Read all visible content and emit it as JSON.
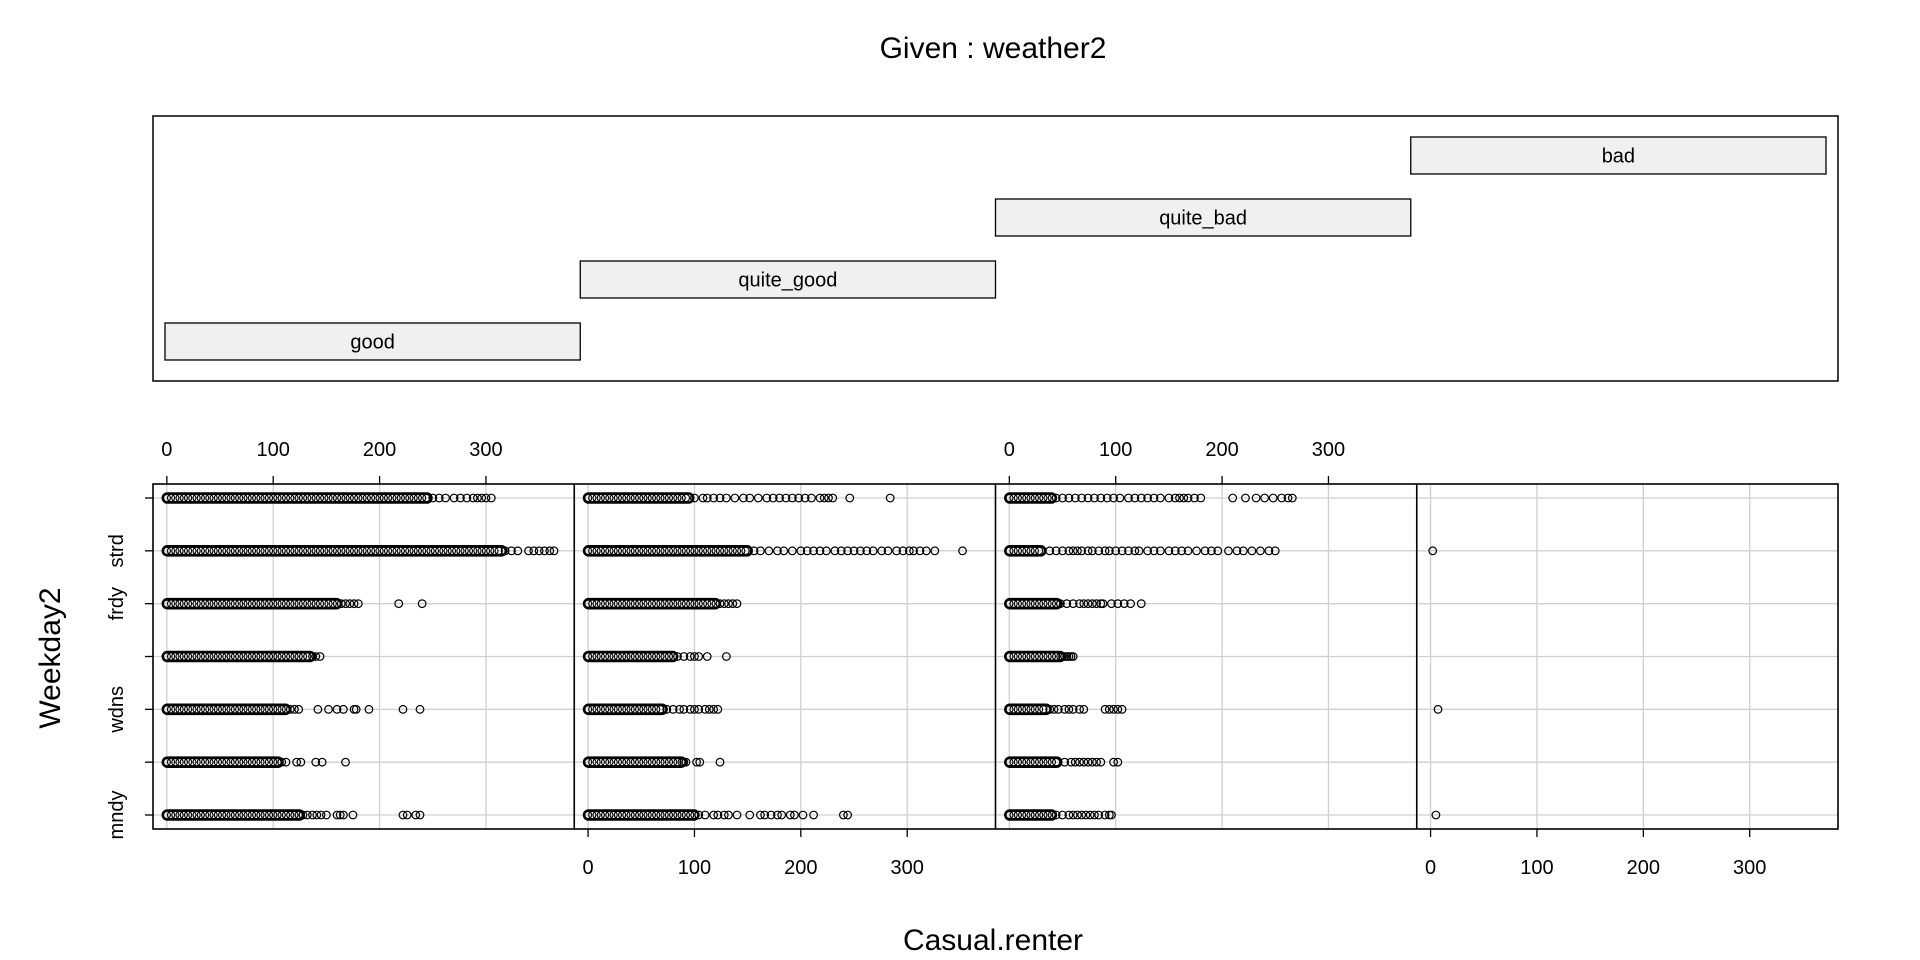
{
  "chart_data": {
    "type": "scatter",
    "title": "Given : weather2",
    "xlabel": "Casual.renter",
    "ylabel": "Weekday2",
    "xlim": [
      -13,
      383
    ],
    "x_ticks": [
      0,
      100,
      200,
      300
    ],
    "grid": true,
    "given": {
      "variable": "weather2",
      "levels": [
        "good",
        "quite_good",
        "quite_bad",
        "bad"
      ]
    },
    "y_categories": [
      "mndy",
      "",
      "wdns",
      "",
      "frdy",
      "strd",
      ""
    ],
    "y_tick_labels": [
      "mndy",
      "wdns",
      "frdy",
      "strd"
    ],
    "panels": [
      {
        "given": "good",
        "rows": [
          {
            "row": "mndy",
            "dense_max": 125,
            "points": [
              128,
              132,
              137,
              141,
              145,
              150,
              160,
              163,
              166,
              175,
              222,
              226,
              234,
              238
            ]
          },
          {
            "row": "",
            "dense_max": 105,
            "points": [
              108,
              112,
              122,
              126,
              140,
              146,
              168
            ]
          },
          {
            "row": "wdns",
            "dense_max": 112,
            "points": [
              116,
              120,
              124,
              142,
              152,
              160,
              166,
              176,
              178,
              190,
              222,
              238
            ]
          },
          {
            "row": "",
            "dense_max": 135,
            "points": [
              137,
              140,
              144
            ]
          },
          {
            "row": "frdy",
            "dense_max": 160,
            "points": [
              164,
              168,
              172,
              176,
              180,
              218,
              240
            ]
          },
          {
            "row": "strd",
            "dense_max": 315,
            "points": [
              318,
              324,
              330,
              340,
              345,
              350,
              355,
              360,
              364
            ]
          },
          {
            "row": "",
            "dense_max": 245,
            "points": [
              250,
              256,
              262,
              270,
              276,
              282,
              288,
              292,
              296,
              300,
              305
            ]
          }
        ]
      },
      {
        "given": "quite_good",
        "rows": [
          {
            "row": "mndy",
            "dense_max": 100,
            "points": [
              104,
              110,
              118,
              122,
              128,
              132,
              140,
              152,
              162,
              166,
              172,
              178,
              182,
              190,
              194,
              202,
              212,
              240,
              244
            ]
          },
          {
            "row": "",
            "dense_max": 88,
            "points": [
              90,
              92,
              102,
              105,
              124
            ]
          },
          {
            "row": "wdns",
            "dense_max": 70,
            "points": [
              74,
              80,
              86,
              90,
              96,
              100,
              104,
              110,
              114,
              118,
              122
            ]
          },
          {
            "row": "",
            "dense_max": 80,
            "points": [
              84,
              90,
              96,
              100,
              104,
              112,
              130
            ]
          },
          {
            "row": "frdy",
            "dense_max": 120,
            "points": [
              124,
              128,
              132,
              136,
              140
            ]
          },
          {
            "row": "strd",
            "dense_max": 150,
            "points": [
              156,
              162,
              170,
              178,
              184,
              192,
              200,
              206,
              212,
              218,
              224,
              232,
              238,
              244,
              250,
              256,
              262,
              268,
              276,
              282,
              290,
              296,
              302,
              306,
              312,
              318,
              326,
              352
            ]
          },
          {
            "row": "",
            "dense_max": 95,
            "points": [
              100,
              108,
              112,
              118,
              124,
              130,
              138,
              146,
              152,
              160,
              168,
              174,
              180,
              186,
              192,
              198,
              204,
              210,
              218,
              222,
              226,
              230,
              246,
              284
            ]
          }
        ]
      },
      {
        "given": "quite_bad",
        "rows": [
          {
            "row": "mndy",
            "dense_max": 40,
            "points": [
              44,
              50,
              56,
              60,
              64,
              68,
              72,
              76,
              80,
              84,
              90,
              94,
              96
            ]
          },
          {
            "row": "",
            "dense_max": 45,
            "points": [
              52,
              58,
              62,
              66,
              70,
              74,
              78,
              82,
              86,
              98,
              102
            ]
          },
          {
            "row": "wdns",
            "dense_max": 35,
            "points": [
              38,
              42,
              46,
              52,
              56,
              60,
              66,
              70,
              90,
              94,
              98,
              102,
              106
            ]
          },
          {
            "row": "",
            "dense_max": 48,
            "points": [
              50,
              52,
              54,
              56,
              58,
              60
            ]
          },
          {
            "row": "frdy",
            "dense_max": 45,
            "points": [
              48,
              54,
              60,
              66,
              70,
              74,
              78,
              82,
              86,
              88,
              96,
              102,
              108,
              114,
              124
            ]
          },
          {
            "row": "strd",
            "dense_max": 30,
            "points": [
              38,
              44,
              50,
              56,
              60,
              64,
              68,
              74,
              78,
              84,
              90,
              94,
              100,
              106,
              112,
              118,
              122,
              130,
              136,
              142,
              150,
              156,
              162,
              168,
              176,
              184,
              190,
              196,
              206,
              214,
              220,
              228,
              236,
              244,
              250
            ]
          },
          {
            "row": "",
            "dense_max": 40,
            "points": [
              44,
              50,
              56,
              62,
              68,
              74,
              80,
              86,
              92,
              98,
              104,
              112,
              118,
              124,
              130,
              136,
              142,
              150,
              156,
              160,
              164,
              168,
              174,
              180,
              210,
              222,
              232,
              240,
              248,
              256,
              262,
              266
            ]
          }
        ]
      },
      {
        "given": "bad",
        "rows": [
          {
            "row": "mndy",
            "dense_max": null,
            "points": [
              5
            ]
          },
          {
            "row": "",
            "dense_max": null,
            "points": []
          },
          {
            "row": "wdns",
            "dense_max": null,
            "points": [
              7
            ]
          },
          {
            "row": "",
            "dense_max": null,
            "points": []
          },
          {
            "row": "frdy",
            "dense_max": null,
            "points": []
          },
          {
            "row": "strd",
            "dense_max": null,
            "points": [
              2
            ]
          },
          {
            "row": "",
            "dense_max": null,
            "points": []
          }
        ]
      }
    ]
  }
}
